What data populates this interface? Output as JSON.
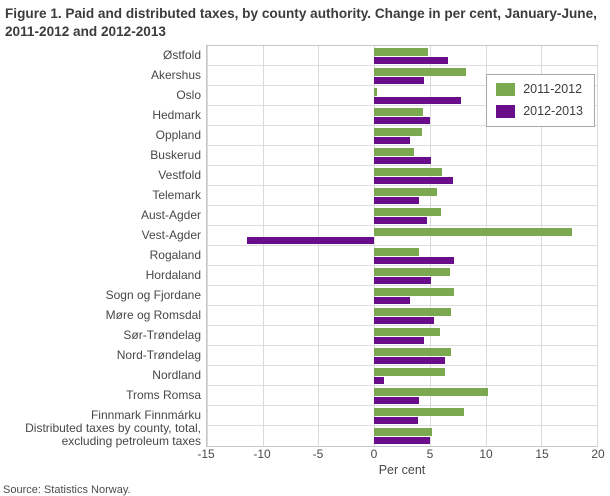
{
  "figure": {
    "title": "Figure 1. Paid and distributed taxes, by county authority. Change in per cent, January-June, 2011-2012 and 2012-2013",
    "source": "Source: Statistics Norway."
  },
  "chart_data": {
    "type": "bar",
    "orientation": "horizontal",
    "title": "Figure 1. Paid and distributed taxes, by county authority. Change in per cent, January-June, 2011-2012 and 2012-2013",
    "xlabel": "Per cent",
    "xlim": [
      -15,
      20
    ],
    "xticks": [
      -15,
      -10,
      -5,
      0,
      5,
      10,
      15,
      20
    ],
    "grid": true,
    "legend_position": "top-right-inside",
    "categories": [
      "Østfold",
      "Akershus",
      "Oslo",
      "Hedmark",
      "Oppland",
      "Buskerud",
      "Vestfold",
      "Telemark",
      "Aust-Agder",
      "Vest-Agder",
      "Rogaland",
      "Hordaland",
      "Sogn og Fjordane",
      "Møre og Romsdal",
      "Sør-Trøndelag",
      "Nord-Trøndelag",
      "Nordland",
      "Troms Romsa",
      "Finnmark Finnmárku",
      "Distributed taxes by county, total, excluding petroleum taxes"
    ],
    "series": [
      {
        "name": "2011-2012",
        "color": "#7bA94f",
        "values": [
          4.8,
          8.2,
          0.3,
          4.4,
          4.3,
          3.6,
          6.1,
          5.6,
          6.0,
          17.8,
          4.0,
          6.8,
          7.2,
          6.9,
          5.9,
          6.9,
          6.4,
          10.2,
          8.1,
          5.2
        ]
      },
      {
        "name": "2012-2013",
        "color": "#6a0d8b",
        "values": [
          6.6,
          4.5,
          7.8,
          5.0,
          3.2,
          5.1,
          7.1,
          4.0,
          4.7,
          -11.4,
          7.2,
          5.1,
          3.2,
          5.4,
          4.5,
          6.4,
          0.9,
          4.0,
          3.9,
          5.0
        ]
      }
    ]
  }
}
